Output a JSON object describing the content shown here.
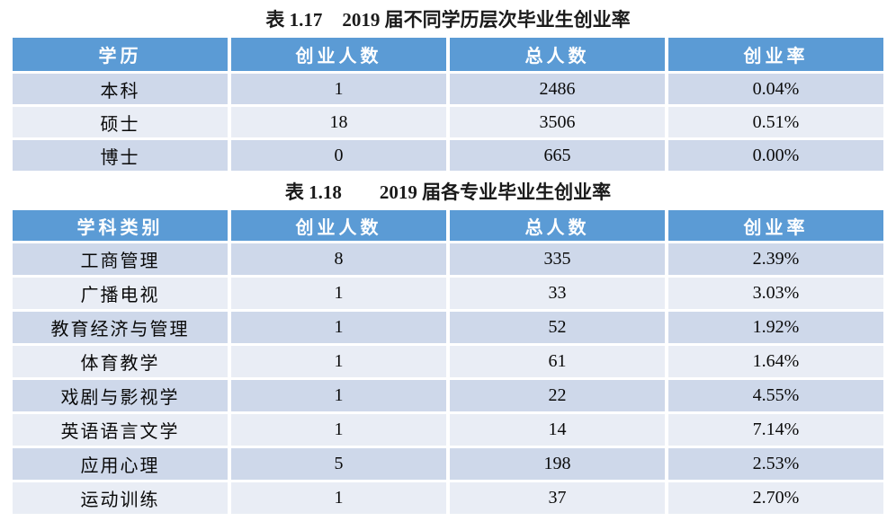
{
  "colors": {
    "header_bg": "#5B9BD5",
    "header_text": "#FFFFFF",
    "row_band_dark": "#CED8EA",
    "row_band_light": "#E9EDF5",
    "body_text": "#0A0A0A",
    "title_text": "#1A1A1A"
  },
  "tables": [
    {
      "title": {
        "label": "表 1.17",
        "text": "2019 届不同学历层次毕业生创业率"
      },
      "columns": [
        "学历",
        "创业人数",
        "总人数",
        "创业率"
      ],
      "rows": [
        [
          "本科",
          "1",
          "2486",
          "0.04%"
        ],
        [
          "硕士",
          "18",
          "3506",
          "0.51%"
        ],
        [
          "博士",
          "0",
          "665",
          "0.00%"
        ]
      ]
    },
    {
      "title": {
        "label": "表 1.18",
        "text": "2019 届各专业毕业生创业率"
      },
      "columns": [
        "学科类别",
        "创业人数",
        "总人数",
        "创业率"
      ],
      "rows": [
        [
          "工商管理",
          "8",
          "335",
          "2.39%"
        ],
        [
          "广播电视",
          "1",
          "33",
          "3.03%"
        ],
        [
          "教育经济与管理",
          "1",
          "52",
          "1.92%"
        ],
        [
          "体育教学",
          "1",
          "61",
          "1.64%"
        ],
        [
          "戏剧与影视学",
          "1",
          "22",
          "4.55%"
        ],
        [
          "英语语言文学",
          "1",
          "14",
          "7.14%"
        ],
        [
          "应用心理",
          "5",
          "198",
          "2.53%"
        ],
        [
          "运动训练",
          "1",
          "37",
          "2.70%"
        ]
      ]
    }
  ]
}
